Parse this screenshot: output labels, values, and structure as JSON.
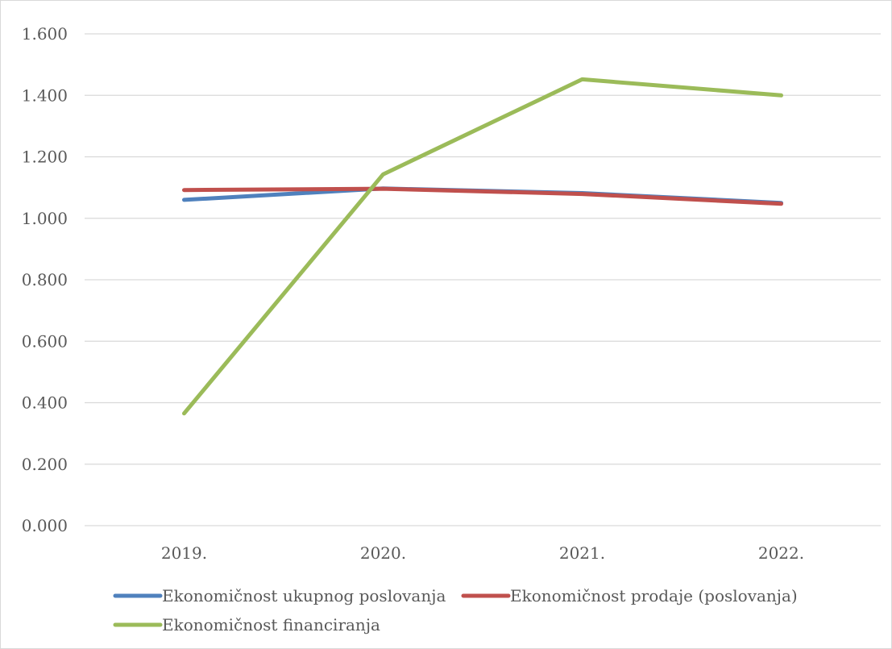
{
  "chart_data": {
    "type": "line",
    "title": "",
    "xlabel": "",
    "ylabel": "",
    "categories": [
      "2019.",
      "2020.",
      "2021.",
      "2022."
    ],
    "ylim": [
      0,
      1.6
    ],
    "yticks": [
      "0.000",
      "0.200",
      "0.400",
      "0.600",
      "0.800",
      "1.000",
      "1.200",
      "1.400",
      "1.600"
    ],
    "grid": true,
    "legend_position": "bottom",
    "series": [
      {
        "name": "Ekonomičnost ukupnog poslovanja",
        "color": "#4f81bd",
        "values": [
          1.06,
          1.097,
          1.082,
          1.05
        ]
      },
      {
        "name": "Ekonomičnost prodaje (poslovanja)",
        "color": "#c0504d",
        "values": [
          1.092,
          1.096,
          1.079,
          1.047
        ]
      },
      {
        "name": "Ekonomičnost financiranja",
        "color": "#9bbb59",
        "values": [
          0.365,
          1.143,
          1.452,
          1.4
        ]
      }
    ]
  }
}
